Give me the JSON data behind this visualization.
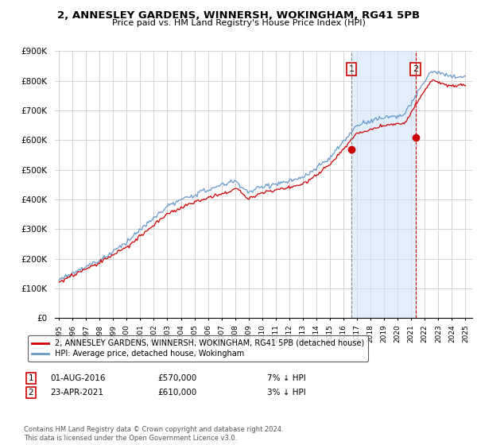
{
  "title": "2, ANNESLEY GARDENS, WINNERSH, WOKINGHAM, RG41 5PB",
  "subtitle": "Price paid vs. HM Land Registry's House Price Index (HPI)",
  "legend_label_red": "2, ANNESLEY GARDENS, WINNERSH, WOKINGHAM, RG41 5PB (detached house)",
  "legend_label_blue": "HPI: Average price, detached house, Wokingham",
  "annotation1_date": "01-AUG-2016",
  "annotation1_price": "£570,000",
  "annotation1_hpi": "7% ↓ HPI",
  "annotation2_date": "23-APR-2021",
  "annotation2_price": "£610,000",
  "annotation2_hpi": "3% ↓ HPI",
  "footer": "Contains HM Land Registry data © Crown copyright and database right 2024.\nThis data is licensed under the Open Government Licence v3.0.",
  "ylim": [
    0,
    900000
  ],
  "yticks": [
    0,
    100000,
    200000,
    300000,
    400000,
    500000,
    600000,
    700000,
    800000,
    900000
  ],
  "ytick_labels": [
    "£0",
    "£100K",
    "£200K",
    "£300K",
    "£400K",
    "£500K",
    "£600K",
    "£700K",
    "£800K",
    "£900K"
  ],
  "red_color": "#cc0000",
  "blue_color": "#6699cc",
  "vline1_color": "#888888",
  "vline2_color": "#cc0000",
  "shade_color": "#d0e4f7",
  "bg_color": "#ffffff",
  "grid_color": "#cccccc",
  "purchase1_x": 2016.583,
  "purchase1_y": 570000,
  "purchase2_x": 2021.31,
  "purchase2_y": 610000,
  "note_box_color": "#cc0000",
  "xlim_left": 1994.7,
  "xlim_right": 2025.5
}
